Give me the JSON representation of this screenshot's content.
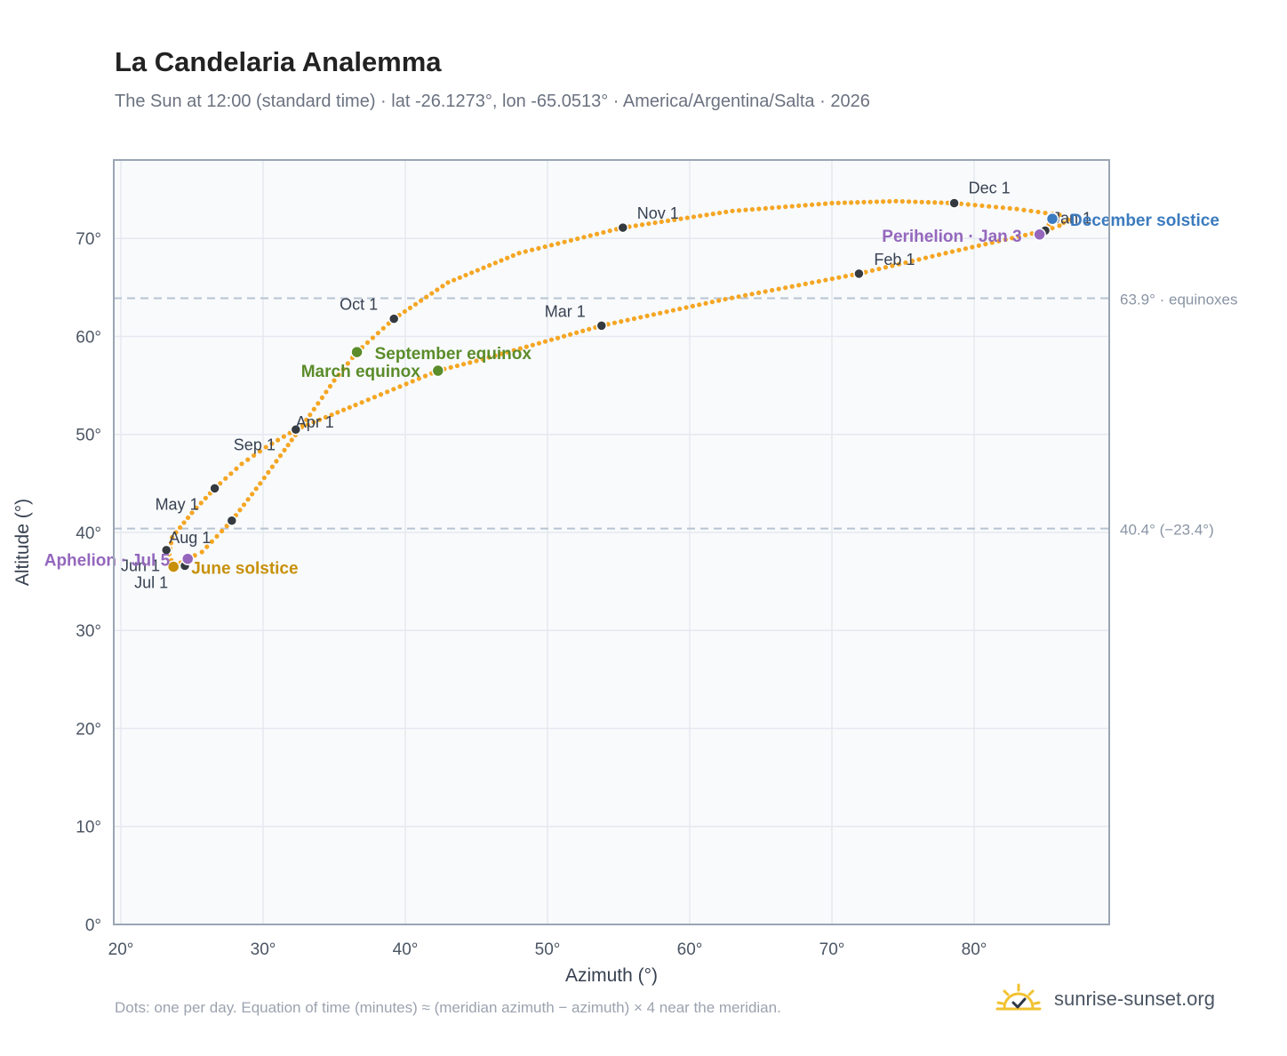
{
  "header": {
    "title": "La Candelaria Analemma",
    "subtitle": "The Sun at 12:00 (standard time) · lat -26.1273°, lon -65.0513° · America/Argentina/Salta · 2026"
  },
  "footer": {
    "note": "Dots: one per day. Equation of time (minutes) ≈ (meridian azimuth − azimuth) × 4 near the meridian.",
    "brand": "sunrise-sunset.org"
  },
  "colors": {
    "path": "#f5a623",
    "month_dot": "#343a40",
    "equinox": "#5b8c2a",
    "december_solstice": "#3b7bbf",
    "june_solstice": "#c8900a",
    "apsis": "#9467bd",
    "reference_line": "#b8c4d2",
    "plot_bg": "#f8fafc"
  },
  "chart_data": {
    "type": "scatter",
    "xlabel": "Azimuth (°)",
    "ylabel": "Altitude (°)",
    "xlim": [
      19.5,
      89.5
    ],
    "ylim": [
      0,
      78
    ],
    "x_ticks": [
      20,
      30,
      40,
      50,
      60,
      70,
      80
    ],
    "x_tick_labels": [
      "20°",
      "30°",
      "40°",
      "50°",
      "60°",
      "70°",
      "80°"
    ],
    "y_ticks": [
      0,
      10,
      20,
      30,
      40,
      50,
      60,
      70
    ],
    "y_tick_labels": [
      "0°",
      "10°",
      "20°",
      "30°",
      "40°",
      "50°",
      "60°",
      "70°"
    ],
    "grid": true,
    "reference_lines": [
      {
        "y": 63.9,
        "label": "63.9° · equinoxes"
      },
      {
        "y": 40.4,
        "label": "40.4° (−23.4°)"
      }
    ],
    "month_markers": [
      {
        "label": "Jan 1",
        "x": 85.0,
        "y": 70.8
      },
      {
        "label": "Feb 1",
        "x": 71.9,
        "y": 66.4
      },
      {
        "label": "Mar 1",
        "x": 53.8,
        "y": 61.1
      },
      {
        "label": "Apr 1",
        "x": 32.3,
        "y": 50.5
      },
      {
        "label": "May 1",
        "x": 26.6,
        "y": 44.5
      },
      {
        "label": "Jun 1",
        "x": 24.5,
        "y": 36.6
      },
      {
        "label": "Jul 1",
        "x": 23.7,
        "y": 36.5
      },
      {
        "label": "Aug 1",
        "x": 23.2,
        "y": 38.2
      },
      {
        "label": "Sep 1",
        "x": 27.8,
        "y": 41.2
      },
      {
        "label": "Oct 1",
        "x": 39.2,
        "y": 61.8
      },
      {
        "label": "Nov 1",
        "x": 55.3,
        "y": 71.1
      },
      {
        "label": "Dec 1",
        "x": 78.6,
        "y": 73.6
      }
    ],
    "special_points": [
      {
        "label": "December solstice",
        "x": 85.5,
        "y": 72.0,
        "kind": "december_solstice"
      },
      {
        "label": "Perihelion · Jan 3",
        "x": 84.6,
        "y": 70.4,
        "kind": "apsis"
      },
      {
        "label": "March equinox",
        "x": 42.3,
        "y": 56.5,
        "kind": "equinox"
      },
      {
        "label": "September equinox",
        "x": 36.6,
        "y": 58.4,
        "kind": "equinox"
      },
      {
        "label": "June solstice",
        "x": 23.7,
        "y": 36.5,
        "kind": "june_solstice"
      },
      {
        "label": "Aphelion · Jul 5",
        "x": 24.7,
        "y": 37.3,
        "kind": "apsis"
      }
    ],
    "path_waypoints": [
      {
        "x": 85.5,
        "y": 72.0
      },
      {
        "x": 85.0,
        "y": 70.8
      },
      {
        "x": 78.0,
        "y": 68.5
      },
      {
        "x": 71.9,
        "y": 66.4
      },
      {
        "x": 62.5,
        "y": 63.8
      },
      {
        "x": 53.8,
        "y": 61.1
      },
      {
        "x": 45.0,
        "y": 57.5
      },
      {
        "x": 42.3,
        "y": 56.5
      },
      {
        "x": 36.5,
        "y": 53.0
      },
      {
        "x": 32.3,
        "y": 50.5
      },
      {
        "x": 30.2,
        "y": 48.7
      },
      {
        "x": 28.5,
        "y": 47.0
      },
      {
        "x": 26.6,
        "y": 44.5
      },
      {
        "x": 25.0,
        "y": 42.0
      },
      {
        "x": 23.6,
        "y": 39.5
      },
      {
        "x": 23.4,
        "y": 37.8
      },
      {
        "x": 23.7,
        "y": 36.5
      },
      {
        "x": 24.7,
        "y": 37.3
      },
      {
        "x": 25.7,
        "y": 38.0
      },
      {
        "x": 27.8,
        "y": 41.2
      },
      {
        "x": 29.8,
        "y": 45.0
      },
      {
        "x": 31.5,
        "y": 48.4
      },
      {
        "x": 33.3,
        "y": 52.0
      },
      {
        "x": 35.0,
        "y": 55.5
      },
      {
        "x": 36.6,
        "y": 58.4
      },
      {
        "x": 39.2,
        "y": 61.8
      },
      {
        "x": 43.0,
        "y": 65.5
      },
      {
        "x": 48.0,
        "y": 68.5
      },
      {
        "x": 55.3,
        "y": 71.1
      },
      {
        "x": 63.0,
        "y": 72.8
      },
      {
        "x": 70.0,
        "y": 73.6
      },
      {
        "x": 74.5,
        "y": 73.8
      },
      {
        "x": 78.6,
        "y": 73.6
      },
      {
        "x": 83.0,
        "y": 73.0
      },
      {
        "x": 86.0,
        "y": 72.4
      },
      {
        "x": 86.6,
        "y": 71.9
      },
      {
        "x": 86.0,
        "y": 71.3
      },
      {
        "x": 85.0,
        "y": 70.8
      }
    ]
  }
}
